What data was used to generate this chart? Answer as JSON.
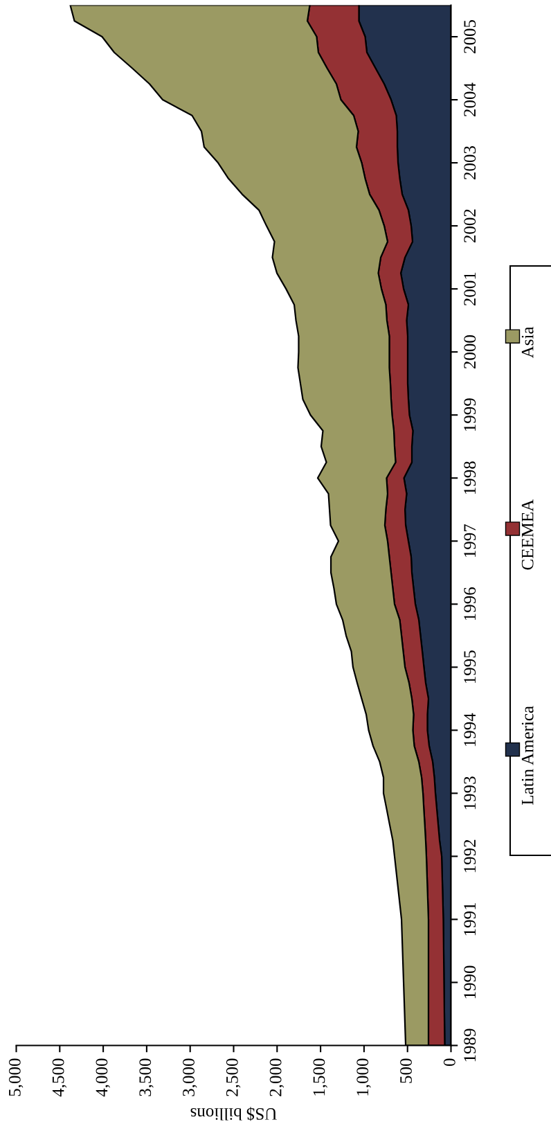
{
  "chart_data": {
    "type": "area",
    "stacked": true,
    "orientation": "horizontal",
    "xlabel": "US$ billions",
    "x": [
      1989,
      1990,
      1991,
      1992,
      1992.25,
      1992.5,
      1992.75,
      1993,
      1993.25,
      1993.5,
      1993.75,
      1994,
      1994.25,
      1994.5,
      1994.75,
      1995,
      1995.25,
      1995.5,
      1995.75,
      1996,
      1996.25,
      1996.5,
      1996.75,
      1997,
      1997.25,
      1997.5,
      1997.75,
      1998,
      1998.25,
      1998.5,
      1998.75,
      1999,
      1999.25,
      1999.5,
      1999.75,
      2000,
      2000.25,
      2000.5,
      2000.75,
      2001,
      2001.25,
      2001.5,
      2001.75,
      2002,
      2002.25,
      2002.5,
      2002.75,
      2003,
      2003.25,
      2003.5,
      2003.75,
      2004,
      2004.25,
      2004.5,
      2004.75,
      2005,
      2005.25,
      2005.5
    ],
    "series": [
      {
        "name": "Latin America",
        "color": "#22314d",
        "values": [
          72,
          80,
          88,
          107,
          131,
          147,
          163,
          179,
          191,
          211,
          251,
          271,
          271,
          259,
          291,
          311,
          330,
          350,
          370,
          410,
          430,
          450,
          458,
          490,
          521,
          529,
          510,
          541,
          450,
          450,
          438,
          478,
          490,
          498,
          498,
          498,
          498,
          510,
          490,
          545,
          577,
          529,
          442,
          458,
          490,
          561,
          589,
          609,
          617,
          617,
          629,
          689,
          768,
          868,
          967,
          987,
          1059,
          1059
        ]
      },
      {
        "name": "CEEMEA",
        "color": "#943134",
        "values": [
          187,
          179,
          171,
          176,
          160,
          154,
          149,
          143,
          147,
          159,
          171,
          167,
          159,
          191,
          191,
          218,
          219,
          219,
          219,
          239,
          239,
          239,
          251,
          239,
          240,
          220,
          219,
          200,
          187,
          199,
          219,
          199,
          199,
          199,
          211,
          211,
          211,
          227,
          259,
          255,
          259,
          279,
          287,
          310,
          338,
          374,
          398,
          418,
          470,
          450,
          490,
          577,
          550,
          557,
          558,
          558,
          593,
          565
        ]
      },
      {
        "name": "Asia",
        "color": "#9b9a63",
        "values": [
          262,
          286,
          310,
          366,
          378,
          404,
          428,
          454,
          438,
          450,
          474,
          509,
          545,
          577,
          597,
          598,
          597,
          637,
          657,
          669,
          677,
          692,
          672,
          565,
          624,
          648,
          680,
          792,
          796,
          844,
          816,
          939,
          1015,
          1035,
          1051,
          1043,
          1043,
          1046,
          1054,
          1097,
          1166,
          1246,
          1301,
          1354,
          1381,
          1466,
          1573,
          1652,
          1752,
          1803,
          1859,
          2050,
          2149,
          2241,
          2348,
          2468,
          2679,
          2755
        ]
      }
    ],
    "xlim": [
      5000,
      0
    ],
    "xticks": [
      {
        "value": 5000,
        "label": "5,000"
      },
      {
        "value": 4500,
        "label": "4,500"
      },
      {
        "value": 4000,
        "label": "4,000"
      },
      {
        "value": 3500,
        "label": "3,500"
      },
      {
        "value": 3000,
        "label": "3,000"
      },
      {
        "value": 2500,
        "label": "2,500"
      },
      {
        "value": 2000,
        "label": "2,000"
      },
      {
        "value": 1500,
        "label": "1,500"
      },
      {
        "value": 1000,
        "label": "1,000"
      },
      500,
      0
    ],
    "ylim": [
      1989,
      2005.5
    ],
    "yticks": [
      1989,
      1990,
      1991,
      1992,
      1993,
      1994,
      1995,
      1996,
      1997,
      1998,
      1999,
      2000,
      2001,
      2002,
      2003,
      2004,
      2005
    ],
    "legend": "right",
    "grid": false
  }
}
